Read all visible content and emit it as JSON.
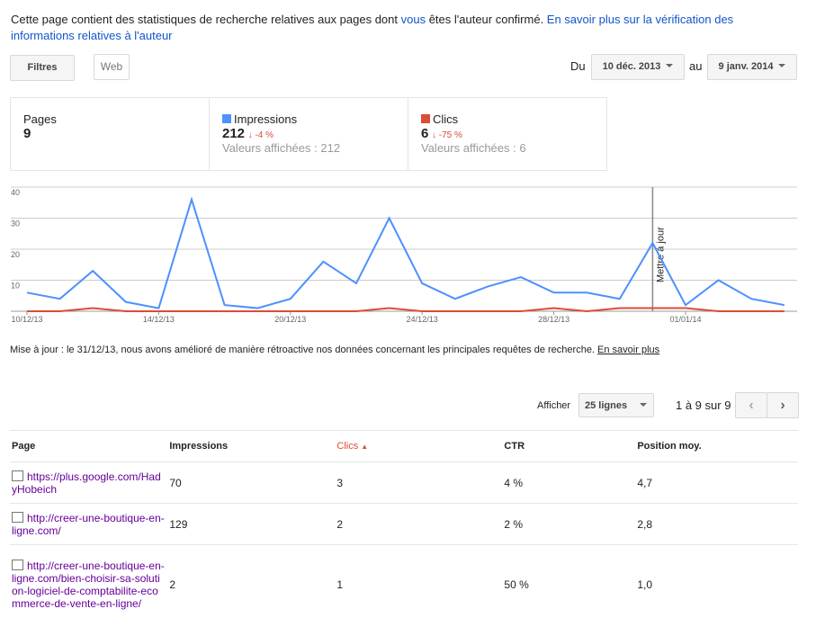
{
  "header": {
    "text_before": "Cette page contient des statistiques de recherche relatives aux pages dont ",
    "link_vous": "vous",
    "text_after": " êtes l'auteur confirmé. ",
    "link_more": "En savoir plus sur la vérification des informations relatives à l'auteur"
  },
  "toolbar": {
    "filters": "Filtres",
    "web": "Web",
    "from_label": "Du",
    "from_date": "10 déc. 2013",
    "to_label": "au",
    "to_date": "9 janv. 2014"
  },
  "stats": [
    {
      "label": "Pages",
      "value": "9"
    },
    {
      "label": "Impressions",
      "value": "212",
      "change": "-4 %",
      "shown": "Valeurs affichées : 212"
    },
    {
      "label": "Clics",
      "value": "6",
      "change": "-75 %",
      "shown": "Valeurs affichées : 6"
    }
  ],
  "chart_data": {
    "type": "line",
    "categories": [
      "10/12/13",
      null,
      null,
      null,
      "14/12/13",
      null,
      null,
      null,
      "20/12/13",
      null,
      null,
      null,
      "24/12/13",
      null,
      null,
      null,
      "28/12/13",
      null,
      null,
      null,
      "01/01/14",
      null,
      null,
      null
    ],
    "series": [
      {
        "name": "Impressions",
        "color": "#4d90fe",
        "values": [
          6,
          4,
          13,
          3,
          1,
          36,
          2,
          1,
          4,
          16,
          9,
          30,
          9,
          4,
          8,
          11,
          6,
          6,
          4,
          22,
          2,
          10,
          4,
          2
        ]
      },
      {
        "name": "Clics",
        "color": "#dd4b39",
        "values": [
          0,
          0,
          1,
          0,
          0,
          0,
          0,
          0,
          0,
          0,
          0,
          1,
          0,
          0,
          0,
          0,
          1,
          0,
          1,
          1,
          1,
          0,
          0,
          0
        ]
      }
    ],
    "ylim": [
      0,
      40
    ],
    "yticks": [
      10,
      20,
      30,
      40
    ],
    "grid": true,
    "annotation": "Mettre à jour"
  },
  "note": {
    "text": "Mise à jour : le 31/12/13, nous avons amélioré de manière rétroactive nos données concernant les principales requêtes de recherche. ",
    "link": "En savoir plus"
  },
  "pager": {
    "show": "Afficher",
    "rows": "25 lignes",
    "range": "1 à 9 sur 9"
  },
  "table": {
    "headers": [
      "Page",
      "Impressions",
      "Clics",
      "CTR",
      "Position moy."
    ],
    "rows": [
      [
        "https://plus.google.com/HadyHobeich",
        "70",
        "3",
        "4 %",
        "4,7"
      ],
      [
        "http://creer-une-boutique-en-ligne.com/",
        "129",
        "2",
        "2 %",
        "2,8"
      ],
      [
        "http://creer-une-boutique-en-ligne.com/bien-choisir-sa-solution-logiciel-de-comptabilite-ecommerce-de-vente-en-ligne/",
        "2",
        "1",
        "50 %",
        "1,0"
      ]
    ]
  }
}
